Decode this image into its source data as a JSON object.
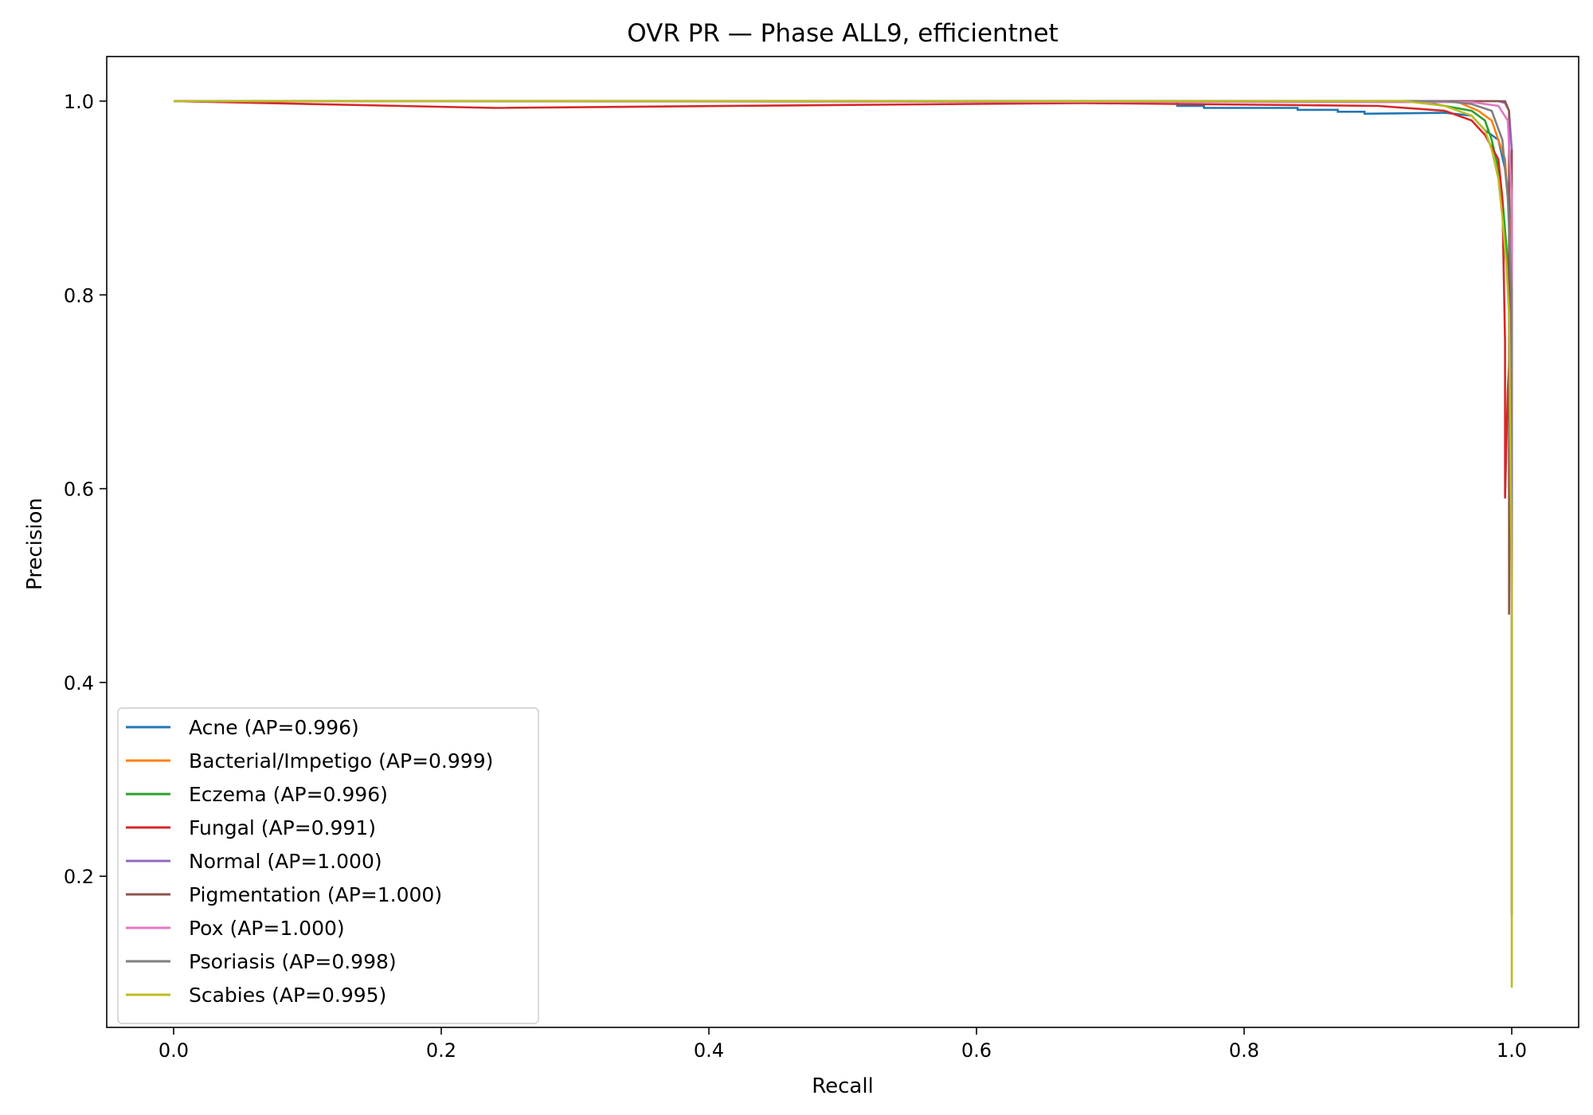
{
  "chart_data": {
    "type": "line",
    "title": "OVR PR — Phase ALL9, efficientnet",
    "xlabel": "Recall",
    "ylabel": "Precision",
    "xlim": [
      -0.05,
      1.05
    ],
    "ylim": [
      0.044,
      1.046
    ],
    "xticks": [
      0.0,
      0.2,
      0.4,
      0.6,
      0.8,
      1.0
    ],
    "xtick_labels": [
      "0.0",
      "0.2",
      "0.4",
      "0.6",
      "0.8",
      "1.0"
    ],
    "yticks": [
      0.2,
      0.4,
      0.6,
      0.8,
      1.0
    ],
    "ytick_labels": [
      "0.2",
      "0.4",
      "0.6",
      "0.8",
      "1.0"
    ],
    "grid": false,
    "legend_position": "lower-left",
    "series": [
      {
        "name": "Acne (AP=0.996)",
        "color": "#1f77b4",
        "x": [
          0.0,
          0.75,
          0.75,
          0.77,
          0.77,
          0.84,
          0.84,
          0.87,
          0.87,
          0.89,
          0.89,
          0.95,
          0.97,
          0.98,
          0.99,
          0.995,
          0.998,
          1.0,
          1.0
        ],
        "y": [
          1.0,
          1.0,
          0.995,
          0.995,
          0.993,
          0.993,
          0.991,
          0.991,
          0.989,
          0.989,
          0.987,
          0.988,
          0.985,
          0.97,
          0.96,
          0.93,
          0.9,
          0.75,
          0.16
        ]
      },
      {
        "name": "Bacterial/Impetigo (AP=0.999)",
        "color": "#ff7f0e",
        "x": [
          0.0,
          0.9,
          0.96,
          0.975,
          0.985,
          0.99,
          0.995,
          0.997,
          1.0,
          1.0
        ],
        "y": [
          1.0,
          1.0,
          0.999,
          0.99,
          0.98,
          0.96,
          0.94,
          0.9,
          0.85,
          0.16
        ]
      },
      {
        "name": "Eczema (AP=0.996)",
        "color": "#2ca02c",
        "x": [
          0.0,
          0.93,
          0.95,
          0.97,
          0.98,
          0.985,
          0.99,
          0.993,
          0.996,
          1.0,
          1.0
        ],
        "y": [
          1.0,
          1.0,
          0.995,
          0.99,
          0.98,
          0.96,
          0.93,
          0.9,
          0.85,
          0.78,
          0.16
        ]
      },
      {
        "name": "Fungal (AP=0.991)",
        "color": "#d62728",
        "x": [
          0.0,
          0.24,
          0.5,
          0.68,
          0.9,
          0.95,
          0.97,
          0.98,
          0.99,
          0.993,
          0.995,
          0.995,
          0.997,
          1.0,
          1.0
        ],
        "y": [
          1.0,
          0.993,
          0.996,
          0.998,
          0.995,
          0.99,
          0.98,
          0.965,
          0.94,
          0.9,
          0.75,
          0.59,
          0.7,
          0.78,
          0.16
        ]
      },
      {
        "name": "Normal (AP=1.000)",
        "color": "#9467bd",
        "x": [
          0.0,
          0.99,
          0.995,
          0.998,
          1.0,
          1.0
        ],
        "y": [
          1.0,
          1.0,
          0.998,
          0.99,
          0.95,
          0.16
        ]
      },
      {
        "name": "Pigmentation (AP=1.000)",
        "color": "#8c564b",
        "x": [
          0.0,
          0.995,
          0.998,
          0.998,
          1.0,
          1.0
        ],
        "y": [
          1.0,
          1.0,
          0.99,
          0.47,
          0.95,
          0.16
        ]
      },
      {
        "name": "Pox (AP=1.000)",
        "color": "#e377c2",
        "x": [
          0.0,
          0.97,
          0.99,
          0.997,
          1.0,
          1.0
        ],
        "y": [
          1.0,
          0.999,
          0.995,
          0.98,
          0.9,
          0.16
        ]
      },
      {
        "name": "Psoriasis (AP=0.998)",
        "color": "#7f7f7f",
        "x": [
          0.0,
          0.95,
          0.97,
          0.985,
          0.993,
          0.997,
          1.0,
          1.0
        ],
        "y": [
          1.0,
          1.0,
          0.997,
          0.99,
          0.96,
          0.9,
          0.8,
          0.16
        ]
      },
      {
        "name": "Scabies (AP=0.995)",
        "color": "#bcbd22",
        "x": [
          0.0,
          0.92,
          0.95,
          0.97,
          0.98,
          0.985,
          0.99,
          0.993,
          0.996,
          0.998,
          1.0,
          1.0
        ],
        "y": [
          1.0,
          1.0,
          0.995,
          0.985,
          0.97,
          0.95,
          0.92,
          0.88,
          0.83,
          0.78,
          0.5,
          0.085
        ]
      }
    ]
  }
}
